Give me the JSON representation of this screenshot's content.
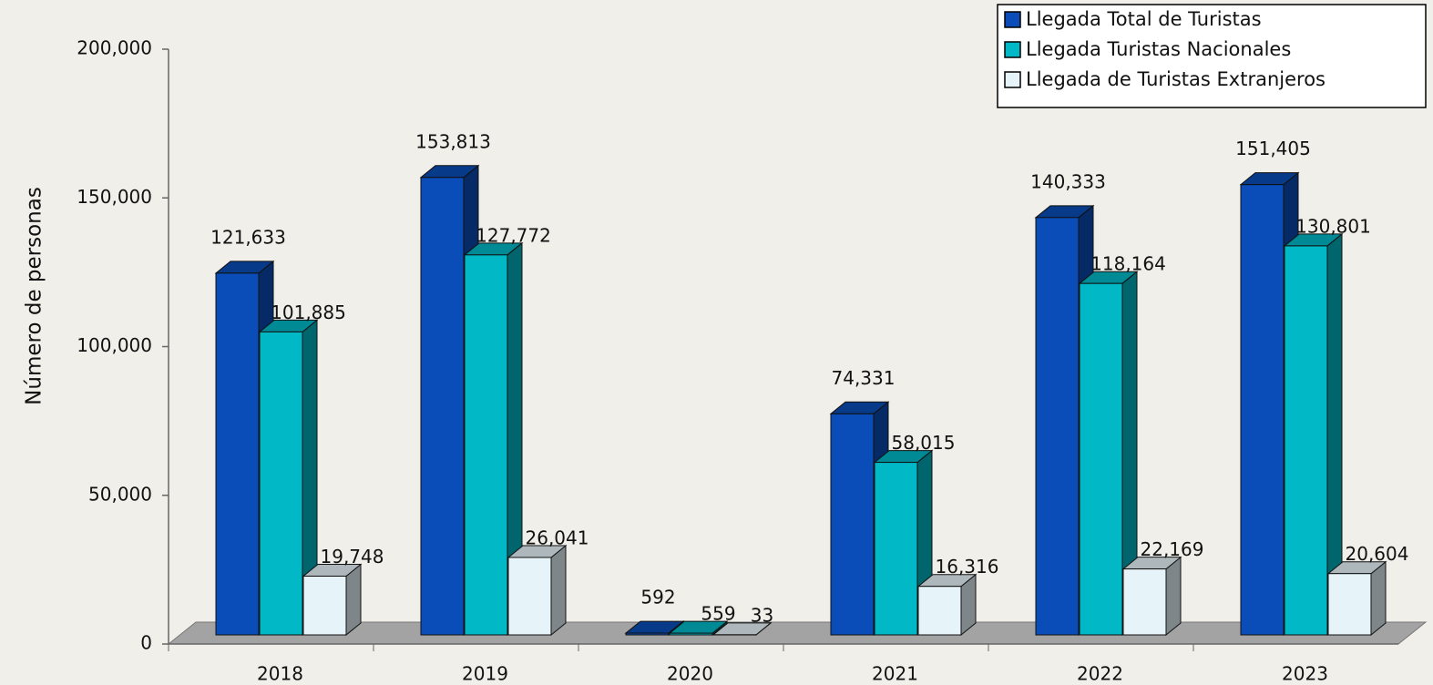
{
  "chart_data": {
    "type": "bar3d",
    "y_label": "Número de personas",
    "categories": [
      "2018",
      "2019",
      "2020",
      "2021",
      "2022",
      "2023"
    ],
    "series": [
      {
        "name": "Llegada Total de Turistas",
        "color": "#0a4db8",
        "values": [
          121633,
          153813,
          592,
          74331,
          140333,
          151405
        ],
        "value_labels": [
          "121,633",
          "153,813",
          "592",
          "74,331",
          "140,333",
          "151,405"
        ]
      },
      {
        "name": "Llegada  Turistas Nacionales",
        "color": "#00b8c6",
        "values": [
          101885,
          127772,
          559,
          58015,
          118164,
          130801
        ],
        "value_labels": [
          "101,885",
          "127,772",
          "559",
          "58,015",
          "118,164",
          "130,801"
        ]
      },
      {
        "name": "Llegada de Turistas Extranjeros",
        "color": "#e6f4fa",
        "values": [
          19748,
          26041,
          33,
          16316,
          22169,
          20604
        ],
        "value_labels": [
          "19,748",
          "26,041",
          "33",
          "16,316",
          "22,169",
          "20,604"
        ]
      }
    ],
    "ylim": [
      0,
      200000
    ],
    "yticks": [
      0,
      {
        "value": 50000,
        "label": "50,000"
      },
      {
        "value": 100000,
        "label": "100,000"
      },
      {
        "value": 150000,
        "label": "150,000"
      },
      {
        "value": 200000,
        "label": "200,000"
      }
    ],
    "legend": "top-right"
  }
}
